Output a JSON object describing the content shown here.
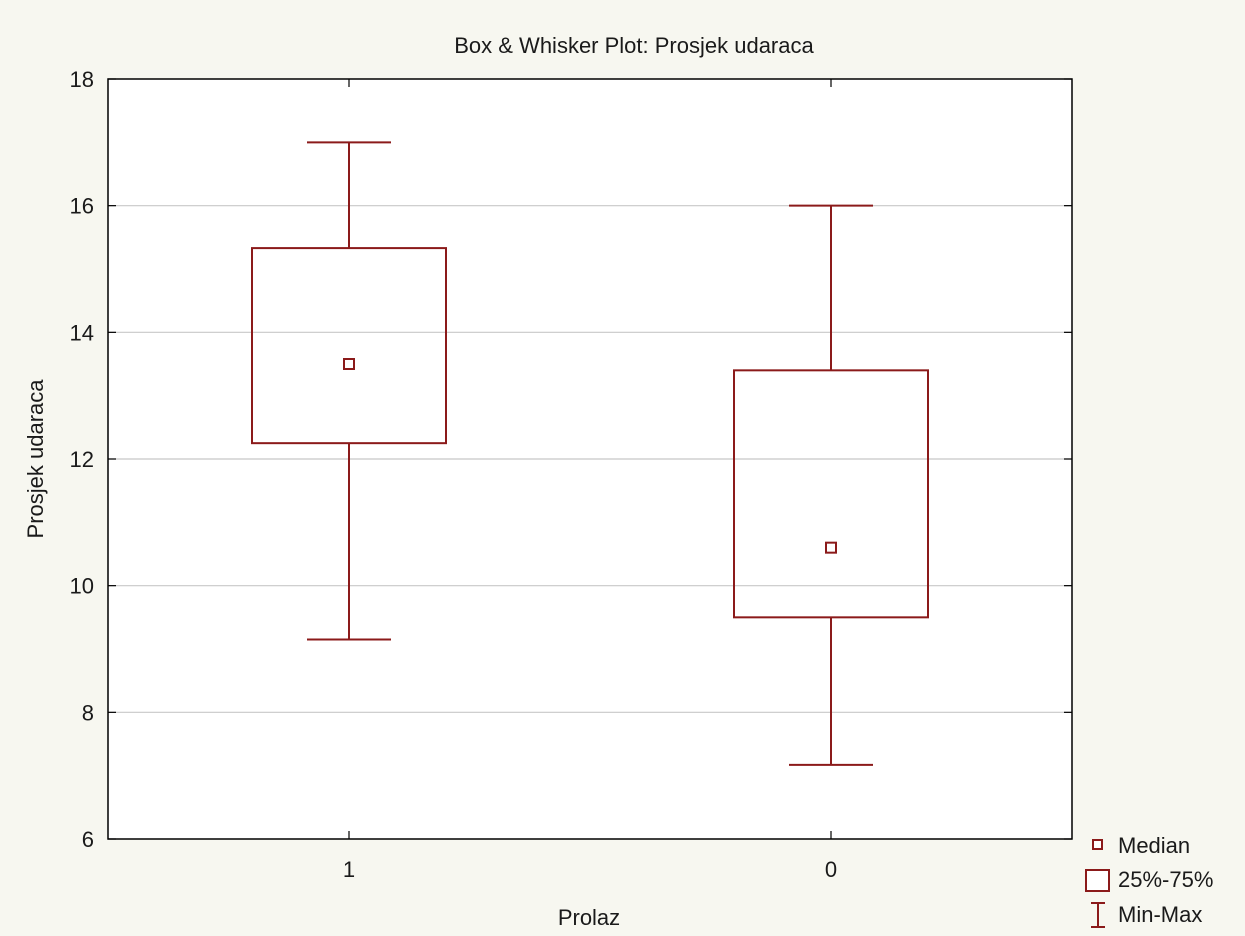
{
  "chart_data": {
    "type": "box",
    "title": "Box & Whisker Plot: Prosjek udaraca",
    "xlabel": "Prolaz",
    "ylabel": "Prosjek udaraca",
    "ylim": [
      6,
      18
    ],
    "yticks": [
      6,
      8,
      10,
      12,
      14,
      16,
      18
    ],
    "grid": true,
    "categories": [
      "1",
      "0"
    ],
    "boxes": [
      {
        "category": "1",
        "min": 9.15,
        "q1": 12.25,
        "median": 13.5,
        "q3": 15.33,
        "max": 17.0
      },
      {
        "category": "0",
        "min": 7.17,
        "q1": 9.5,
        "median": 10.6,
        "q3": 13.4,
        "max": 16.0
      }
    ],
    "legend": {
      "placement": "bottom-right",
      "items": [
        {
          "label": "Median",
          "symbol": "small-square"
        },
        {
          "label": "25%-75%",
          "symbol": "box"
        },
        {
          "label": "Min-Max",
          "symbol": "whisker"
        }
      ]
    },
    "colors": {
      "series": "#8b1a1a",
      "grid": "#c8c8c8",
      "plot_background": "#ffffff",
      "page_background": "#f7f7f0"
    }
  }
}
